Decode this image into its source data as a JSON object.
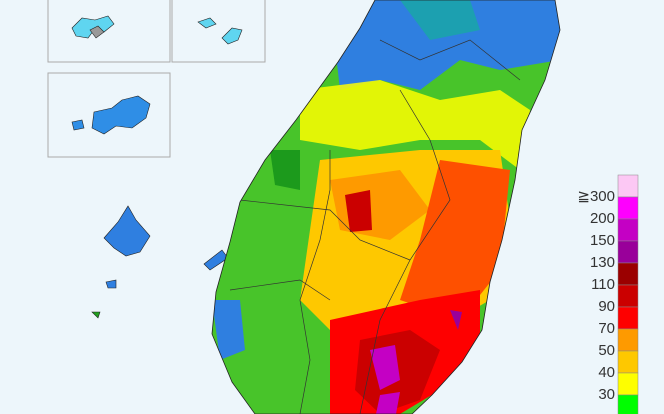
{
  "legend": {
    "labels": [
      "≧300",
      "200",
      "150",
      "130",
      "110",
      "90",
      "70",
      "50",
      "40",
      "30"
    ],
    "colors": [
      "#fcc8f4",
      "#fe00fe",
      "#c400c4",
      "#99009a",
      "#9b0000",
      "#cb0000",
      "#fe0000",
      "#fe9a00",
      "#fec800",
      "#fefe00",
      "#00fe00"
    ]
  }
}
